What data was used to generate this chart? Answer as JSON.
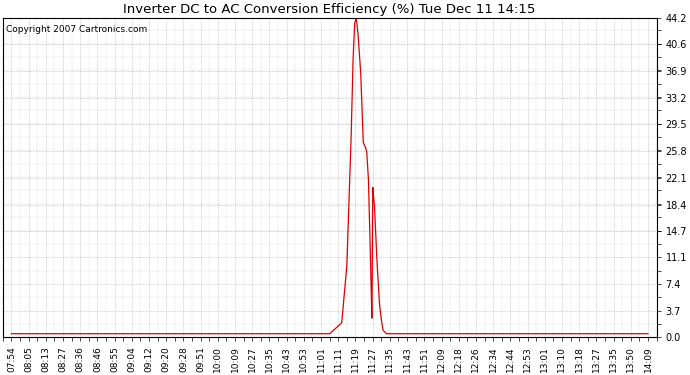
{
  "title": "Inverter DC to AC Conversion Efficiency (%) Tue Dec 11 14:15",
  "copyright_text": "Copyright 2007 Cartronics.com",
  "bg_color": "#ffffff",
  "plot_bg_color": "#ffffff",
  "line_color": "#dd0000",
  "grid_color": "#aaaaaa",
  "yticks": [
    0.0,
    3.7,
    7.4,
    11.1,
    14.7,
    18.4,
    22.1,
    25.8,
    29.5,
    33.2,
    36.9,
    40.6,
    44.2
  ],
  "ymax": 44.2,
  "ymin": 0.0,
  "x_labels": [
    "07:54",
    "08:05",
    "08:13",
    "08:27",
    "08:36",
    "08:46",
    "08:55",
    "09:04",
    "09:12",
    "09:20",
    "09:28",
    "09:51",
    "10:00",
    "10:09",
    "10:27",
    "10:35",
    "10:43",
    "10:53",
    "11:01",
    "11:11",
    "11:19",
    "11:27",
    "11:35",
    "11:43",
    "11:51",
    "12:09",
    "12:18",
    "12:26",
    "12:34",
    "12:44",
    "12:53",
    "13:01",
    "13:10",
    "13:18",
    "13:27",
    "13:35",
    "13:50",
    "14:09"
  ],
  "ctrl_x": [
    0,
    18.5,
    19.2,
    19.5,
    19.75,
    19.85,
    19.95,
    20.05,
    20.15,
    20.3,
    20.45,
    20.55,
    20.65,
    20.75,
    20.82,
    20.88,
    20.92,
    20.96,
    21.0,
    21.05,
    21.1,
    21.15,
    21.2,
    21.25,
    21.3,
    21.35,
    21.4,
    21.5,
    21.6,
    21.8,
    22.0,
    37
  ],
  "ctrl_y": [
    0.5,
    0.5,
    2.0,
    10.0,
    28.0,
    38.0,
    43.5,
    44.2,
    42.0,
    36.9,
    27.0,
    26.5,
    25.8,
    22.0,
    16.0,
    10.0,
    5.5,
    2.0,
    21.0,
    19.5,
    18.4,
    16.0,
    13.0,
    10.5,
    8.5,
    6.5,
    4.5,
    2.5,
    1.0,
    0.5,
    0.5,
    0.5
  ],
  "n_points": 38,
  "figwidth": 6.9,
  "figheight": 3.75,
  "dpi": 100
}
